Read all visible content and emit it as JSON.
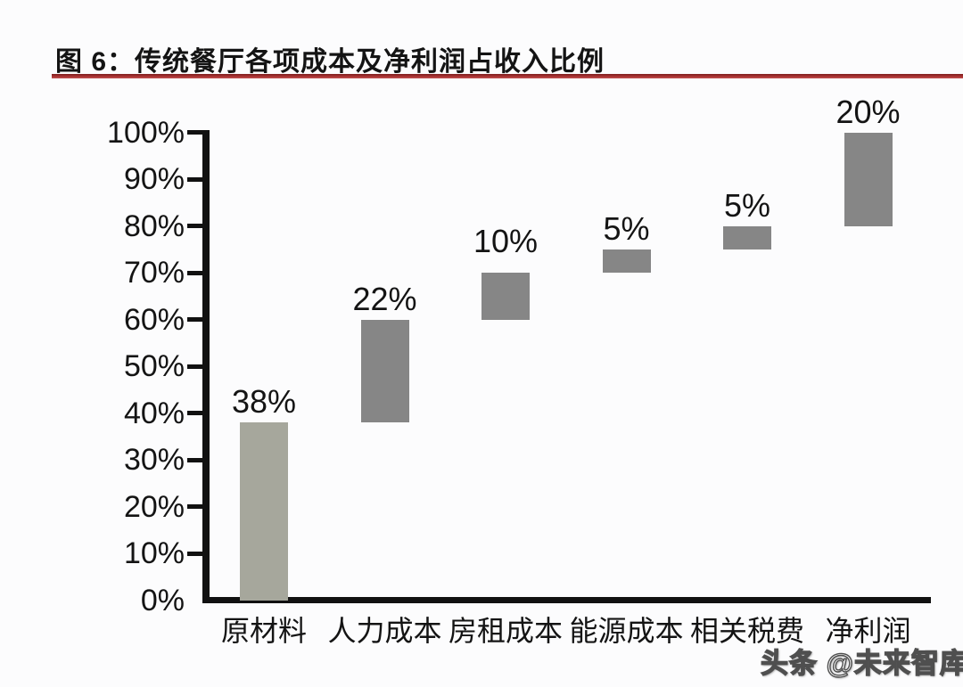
{
  "title": {
    "label": "图 6：传统餐厅各项成本及净利润占收入比例"
  },
  "watermark": {
    "text": "头条 @未来智库"
  },
  "chart_data": {
    "type": "bar",
    "subtype": "waterfall",
    "title": "图 6：传统餐厅各项成本及净利润占收入比例",
    "categories": [
      "原材料",
      "人力成本",
      "房租成本",
      "能源成本",
      "相关税费",
      "净利润"
    ],
    "category_slugs": [
      "raw-materials",
      "labor-cost",
      "rent-cost",
      "energy-cost",
      "taxes-fees",
      "net-profit"
    ],
    "values": [
      38,
      22,
      10,
      5,
      5,
      20
    ],
    "starts": [
      0,
      38,
      60,
      70,
      75,
      80
    ],
    "data_labels": [
      "38%",
      "22%",
      "10%",
      "5%",
      "5%",
      "20%"
    ],
    "y_tick_labels": [
      "0%",
      "10%",
      "20%",
      "30%",
      "40%",
      "50%",
      "60%",
      "70%",
      "80%",
      "90%",
      "100%"
    ],
    "y_tick_values": [
      0,
      10,
      20,
      30,
      40,
      50,
      60,
      70,
      80,
      90,
      100
    ],
    "ylim": [
      0,
      100
    ],
    "xlabel": "",
    "ylabel": "",
    "grid": false,
    "legend": null,
    "bar_colors": [
      "#a6a79c",
      "#868686",
      "#868686",
      "#868686",
      "#868686",
      "#868686"
    ],
    "axis_color": "#111111",
    "text_color": "#141414",
    "accent_underline_color": "#9b2b2b",
    "background_color": "#fcfcfd"
  }
}
